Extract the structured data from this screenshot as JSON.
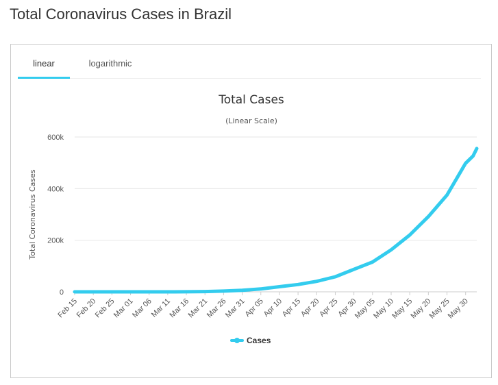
{
  "page": {
    "title": "Total Coronavirus Cases in Brazil"
  },
  "tabs": [
    {
      "label": "linear",
      "active": true
    },
    {
      "label": "logarithmic",
      "active": false
    }
  ],
  "colors": {
    "series": "#33ccee",
    "grid": "#e6e6e6",
    "tab_active": "#33ccee"
  },
  "chart_data": {
    "type": "line",
    "title": "Total Cases",
    "subtitle": "(Linear Scale)",
    "ylabel": "Total Coronavirus Cases",
    "xlabel": "",
    "ylim": [
      0,
      600000
    ],
    "yticks": [
      0,
      200000,
      400000,
      600000
    ],
    "ytick_labels": [
      "0",
      "200k",
      "400k",
      "600k"
    ],
    "grid": true,
    "legend_position": "bottom-center",
    "x_start": "2020-02-15",
    "x_end": "2020-06-02",
    "xtick_labels": [
      "Feb 15",
      "Feb 20",
      "Feb 25",
      "Mar 01",
      "Mar 06",
      "Mar 11",
      "Mar 16",
      "Mar 21",
      "Mar 26",
      "Mar 31",
      "Apr 05",
      "Apr 10",
      "Apr 15",
      "Apr 20",
      "Apr 25",
      "Apr 30",
      "May 05",
      "May 10",
      "May 15",
      "May 20",
      "May 25",
      "May 30"
    ],
    "series": [
      {
        "name": "Cases",
        "points": [
          [
            "2020-02-15",
            0
          ],
          [
            "2020-02-25",
            0
          ],
          [
            "2020-03-01",
            2
          ],
          [
            "2020-03-06",
            13
          ],
          [
            "2020-03-11",
            52
          ],
          [
            "2020-03-16",
            234
          ],
          [
            "2020-03-21",
            1128
          ],
          [
            "2020-03-26",
            2985
          ],
          [
            "2020-03-31",
            5717
          ],
          [
            "2020-04-05",
            11130
          ],
          [
            "2020-04-10",
            19943
          ],
          [
            "2020-04-15",
            28320
          ],
          [
            "2020-04-20",
            40743
          ],
          [
            "2020-04-25",
            58509
          ],
          [
            "2020-04-30",
            87187
          ],
          [
            "2020-05-05",
            115455
          ],
          [
            "2020-05-10",
            162699
          ],
          [
            "2020-05-15",
            220291
          ],
          [
            "2020-05-20",
            291579
          ],
          [
            "2020-05-25",
            374898
          ],
          [
            "2020-05-30",
            498440
          ],
          [
            "2020-06-01",
            526447
          ],
          [
            "2020-06-02",
            555383
          ]
        ]
      }
    ]
  }
}
